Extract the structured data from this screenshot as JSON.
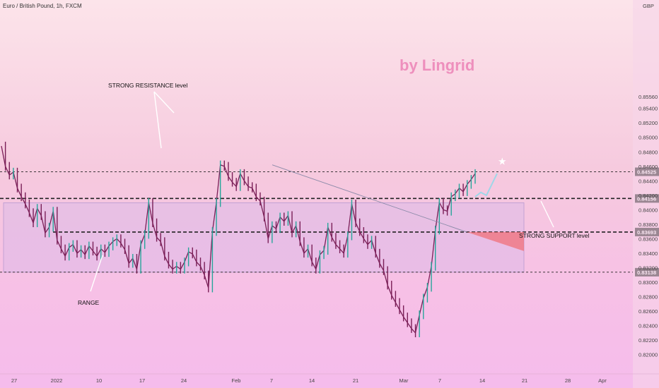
{
  "header": {
    "symbol": "Euro / British Pound, 1h, FXCM"
  },
  "watermark": "by Lingrid",
  "chart_data": {
    "type": "line",
    "title": "Euro / British Pound, 1h, FXCM",
    "currency": "GBP",
    "ylim": [
      0.8188,
      0.8678
    ],
    "y_ticks": [
      "0.85560",
      "0.85400",
      "0.85200",
      "0.85000",
      "0.84800",
      "0.84600",
      "0.84400",
      "0.84200",
      "0.84000",
      "0.83800",
      "0.83600",
      "0.83400",
      "0.83200",
      "0.83000",
      "0.82800",
      "0.82600",
      "0.82400",
      "0.82200",
      "0.82000"
    ],
    "x_ticks": [
      "27",
      "2022",
      "10",
      "17",
      "24",
      "Feb",
      "7",
      "14",
      "21",
      "Mar",
      "7",
      "14",
      "21",
      "28",
      "Apr"
    ],
    "series": [
      {
        "values": [
          0.8488,
          0.846,
          0.8448,
          0.8452,
          0.843,
          0.8418,
          0.8408,
          0.8396,
          0.8382,
          0.8402,
          0.8392,
          0.8368,
          0.8376,
          0.8398,
          0.8358,
          0.8346,
          0.8336,
          0.8348,
          0.8352,
          0.834,
          0.8345,
          0.8338,
          0.835,
          0.8343,
          0.8336,
          0.8346,
          0.8341,
          0.835,
          0.8356,
          0.836,
          0.8354,
          0.8345,
          0.8326,
          0.8333,
          0.8318,
          0.8352,
          0.8366,
          0.841,
          0.8382,
          0.8362,
          0.8356,
          0.8336,
          0.8325,
          0.8318,
          0.8322,
          0.8318,
          0.8328,
          0.8342,
          0.8339,
          0.8328,
          0.8322,
          0.831,
          0.8292,
          0.837,
          0.841,
          0.8462,
          0.846,
          0.8446,
          0.8438,
          0.8432,
          0.845,
          0.844,
          0.8432,
          0.843,
          0.8418,
          0.8412,
          0.839,
          0.836,
          0.8378,
          0.8374,
          0.839,
          0.8384,
          0.8392,
          0.8368,
          0.8378,
          0.8356,
          0.834,
          0.8346,
          0.8328,
          0.8318,
          0.8338,
          0.8344,
          0.8376,
          0.8362,
          0.8352,
          0.8346,
          0.834,
          0.8364,
          0.8408,
          0.8382,
          0.837,
          0.836,
          0.8352,
          0.8358,
          0.834,
          0.8326,
          0.8316,
          0.8296,
          0.8282,
          0.8272,
          0.8262,
          0.8252,
          0.8244,
          0.8236,
          0.823,
          0.8255,
          0.8278,
          0.8293,
          0.8322,
          0.8372,
          0.841,
          0.84,
          0.8398,
          0.8418,
          0.8422,
          0.843,
          0.8425,
          0.8435,
          0.8442,
          0.845
        ]
      }
    ],
    "levels": [
      {
        "price": 0.84525,
        "label": "0.84525",
        "style": "dashed-thin"
      },
      {
        "price": 0.84156,
        "label": "0.84156",
        "style": "dashed-bold"
      },
      {
        "price": 0.83693,
        "label": "0.83693",
        "style": "dashed-bold"
      },
      {
        "price": 0.83138,
        "label": "0.83138",
        "style": "dashed-thin"
      }
    ],
    "annotations": {
      "resistance": "STRONG RESISTANCE level",
      "support": "STRONG SUPPORT level",
      "range": "RANGE"
    },
    "colors": {
      "candle_up": "#26a69a",
      "candle_down": "#7a1f57",
      "range_box": "#d7b8e8",
      "support_triangle": "#f0707a",
      "target_line": "#9fd7e8",
      "tag_bg": "#111111"
    },
    "grid": false
  }
}
